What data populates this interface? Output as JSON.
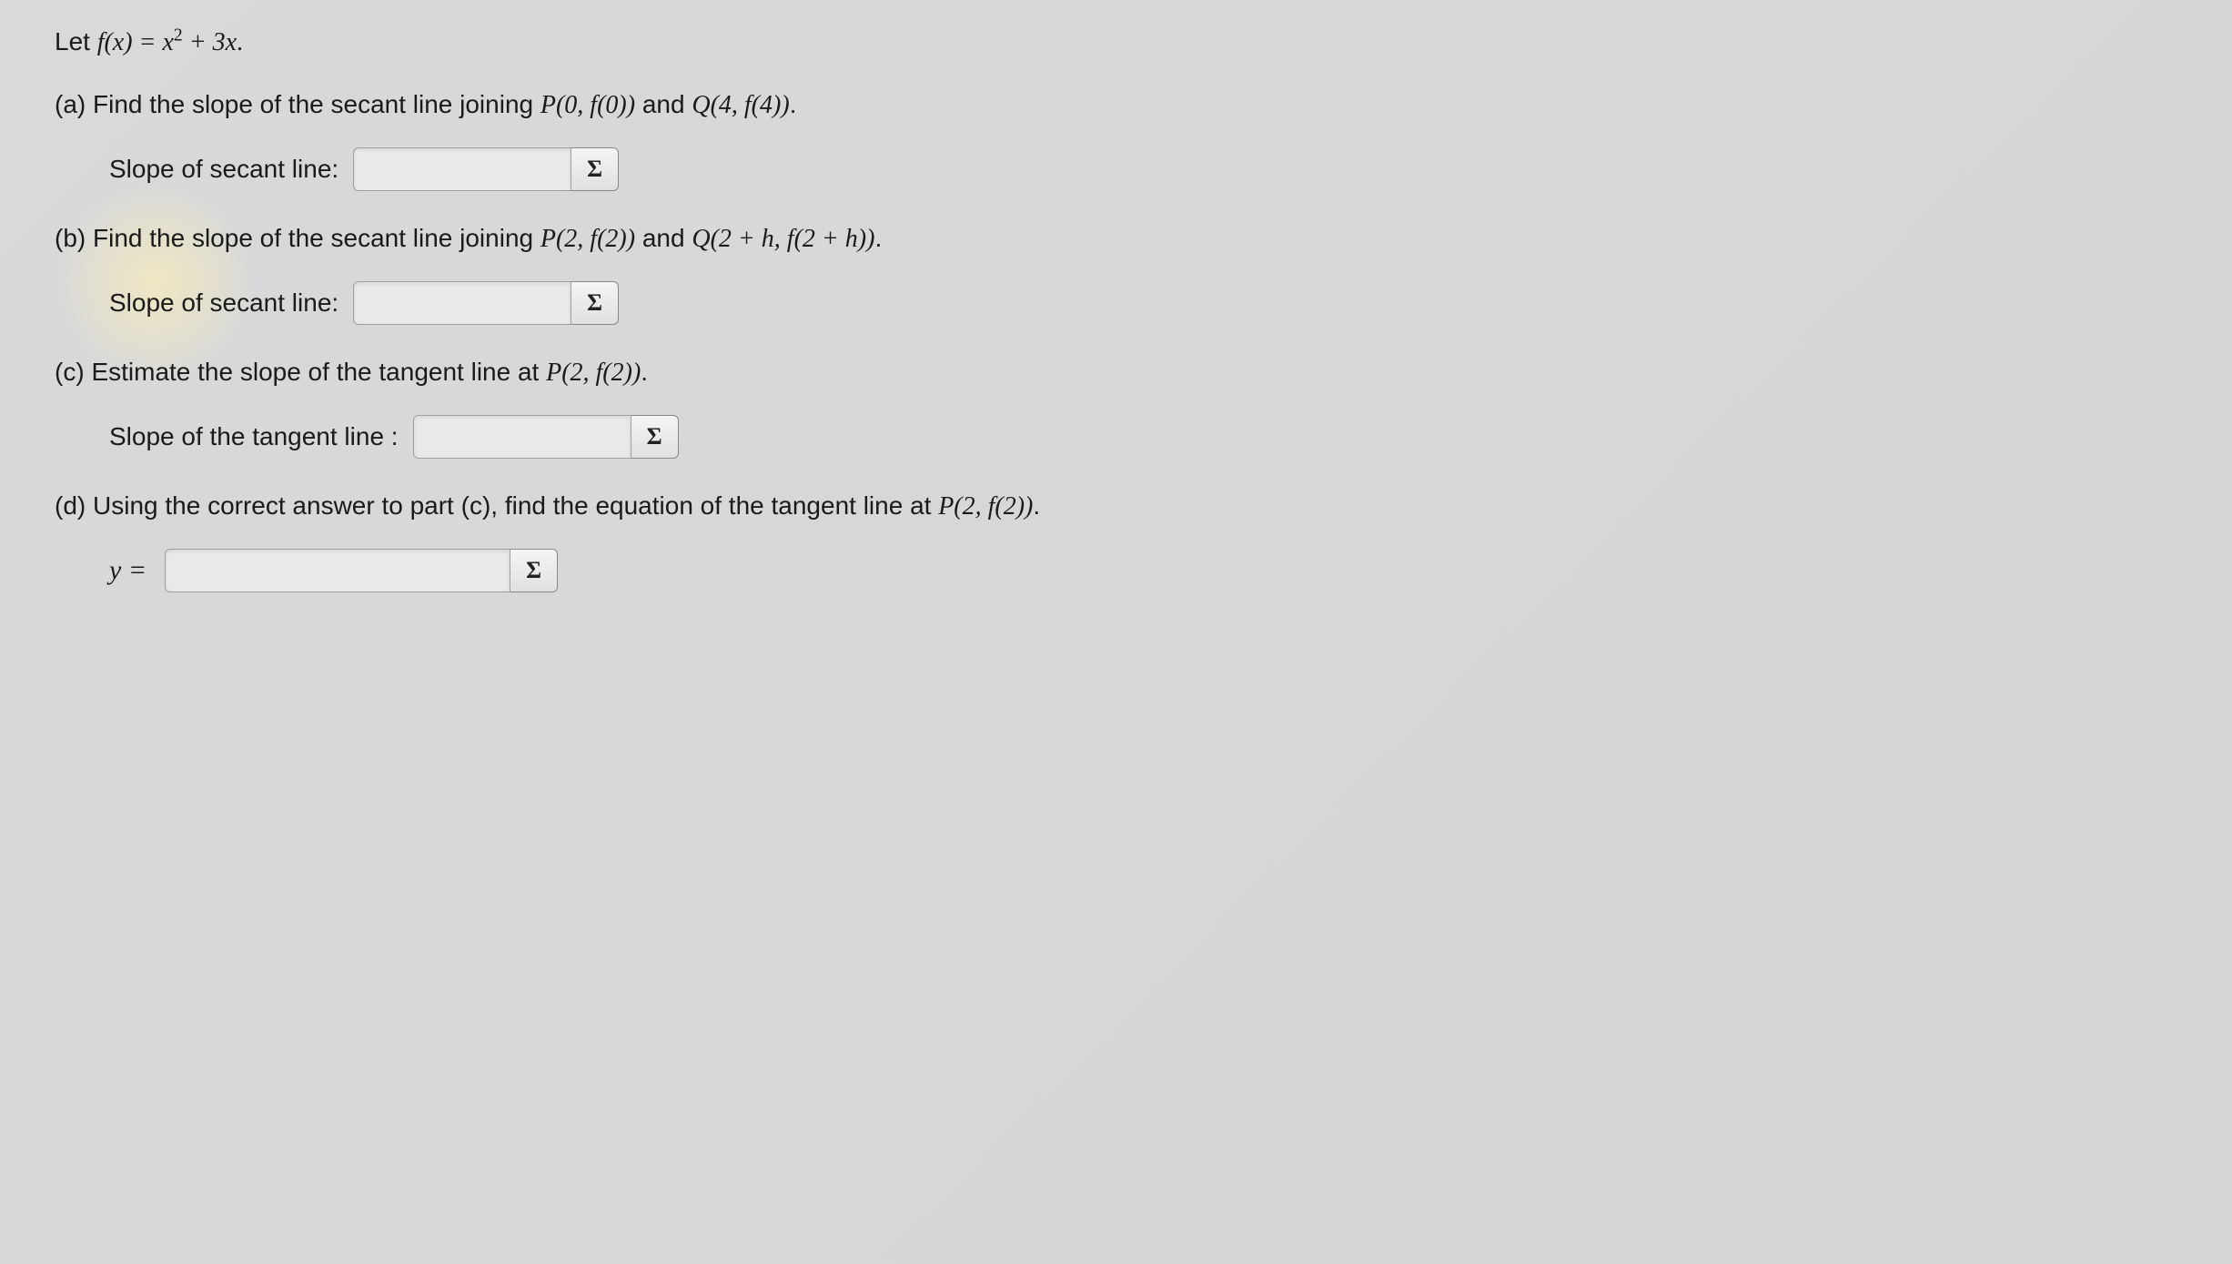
{
  "intro": {
    "prefix": "Let ",
    "func_lhs": "f(x) = x",
    "func_sup": "2",
    "func_rest": " + 3x",
    "suffix": "."
  },
  "parts": {
    "a": {
      "label": "(a) ",
      "text_before": "Find the slope of the secant line joining ",
      "p_expr": "P(0, f(0))",
      "mid": " and ",
      "q_expr": "Q(4, f(4))",
      "suffix": ".",
      "answer_label": "Slope of secant line:"
    },
    "b": {
      "label": "(b) ",
      "text_before": "Find the slope of the secant line joining ",
      "p_expr": "P(2, f(2))",
      "mid": " and ",
      "q_expr": "Q(2 + h, f(2 + h))",
      "suffix": ".",
      "answer_label": "Slope of secant line:"
    },
    "c": {
      "label": "(c) ",
      "text_before": "Estimate the slope of the tangent line at ",
      "p_expr": "P(2, f(2))",
      "suffix": ".",
      "answer_label": "Slope of the tangent line :"
    },
    "d": {
      "label": "(d) ",
      "text_before": "Using the correct answer to part (c), find the equation of the tangent line at ",
      "p_expr": "P(2, f(2))",
      "suffix": ".",
      "answer_prefix": "y ="
    }
  },
  "sigma": "Σ",
  "colors": {
    "background": "#d6d7d8",
    "text": "#1a1a1a",
    "input_bg": "#e8e9ea",
    "input_border": "#a0a0a0",
    "button_border": "#888888"
  },
  "fonts": {
    "body_family": "Arial",
    "body_size_pt": 21,
    "math_family": "Times New Roman"
  }
}
